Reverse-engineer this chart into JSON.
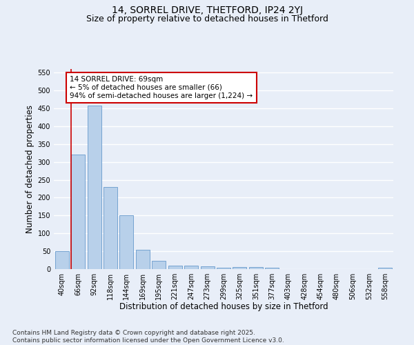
{
  "title_line1": "14, SORREL DRIVE, THETFORD, IP24 2YJ",
  "title_line2": "Size of property relative to detached houses in Thetford",
  "xlabel": "Distribution of detached houses by size in Thetford",
  "ylabel": "Number of detached properties",
  "footer_line1": "Contains HM Land Registry data © Crown copyright and database right 2025.",
  "footer_line2": "Contains public sector information licensed under the Open Government Licence v3.0.",
  "bar_labels": [
    "40sqm",
    "66sqm",
    "92sqm",
    "118sqm",
    "144sqm",
    "169sqm",
    "195sqm",
    "221sqm",
    "247sqm",
    "273sqm",
    "299sqm",
    "325sqm",
    "351sqm",
    "377sqm",
    "403sqm",
    "428sqm",
    "454sqm",
    "480sqm",
    "506sqm",
    "532sqm",
    "558sqm"
  ],
  "bar_values": [
    50,
    320,
    457,
    230,
    150,
    55,
    23,
    10,
    10,
    8,
    3,
    5,
    5,
    3,
    0,
    0,
    0,
    0,
    0,
    0,
    3
  ],
  "bar_color": "#b8d0ea",
  "bar_edge_color": "#6699cc",
  "background_color": "#e8eef8",
  "grid_color": "#ffffff",
  "annotation_text": "14 SORREL DRIVE: 69sqm\n← 5% of detached houses are smaller (66)\n94% of semi-detached houses are larger (1,224) →",
  "annotation_box_color": "#ffffff",
  "annotation_box_edge": "#cc0000",
  "vline_color": "#cc0000",
  "vline_x_index": 1,
  "ylim": [
    0,
    560
  ],
  "yticks": [
    0,
    50,
    100,
    150,
    200,
    250,
    300,
    350,
    400,
    450,
    500,
    550
  ],
  "title_fontsize": 10,
  "subtitle_fontsize": 9,
  "axis_label_fontsize": 8.5,
  "tick_fontsize": 7,
  "footer_fontsize": 6.5,
  "annotation_fontsize": 7.5
}
